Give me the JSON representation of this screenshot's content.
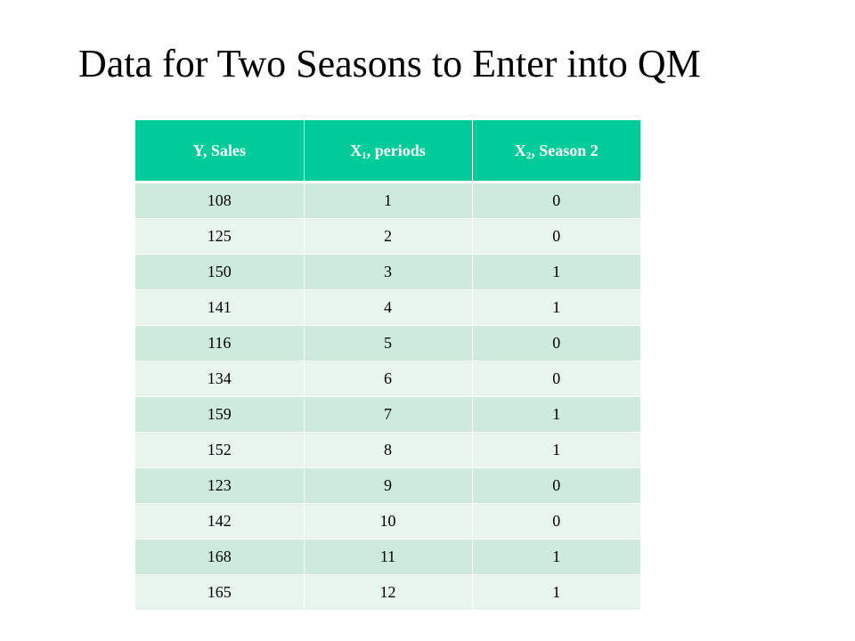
{
  "title": "Data for Two Seasons to Enter into QM",
  "table": {
    "headers": [
      {
        "main": "Y, Sales",
        "sub": "",
        "rest": ""
      },
      {
        "main": "X",
        "sub": "1",
        "rest": ", periods"
      },
      {
        "main": "X",
        "sub": "2",
        "rest": ", Season 2"
      }
    ],
    "rows": [
      [
        "108",
        "1",
        "0"
      ],
      [
        "125",
        "2",
        "0"
      ],
      [
        "150",
        "3",
        "1"
      ],
      [
        "141",
        "4",
        "1"
      ],
      [
        "116",
        "5",
        "0"
      ],
      [
        "134",
        "6",
        "0"
      ],
      [
        "159",
        "7",
        "1"
      ],
      [
        "152",
        "8",
        "1"
      ],
      [
        "123",
        "9",
        "0"
      ],
      [
        "142",
        "10",
        "0"
      ],
      [
        "168",
        "11",
        "1"
      ],
      [
        "165",
        "12",
        "1"
      ]
    ]
  },
  "colors": {
    "header_bg": "#00cc99",
    "header_text": "#ffffff",
    "row_odd_bg": "#cdeadd",
    "row_even_bg": "#e8f4ee"
  }
}
